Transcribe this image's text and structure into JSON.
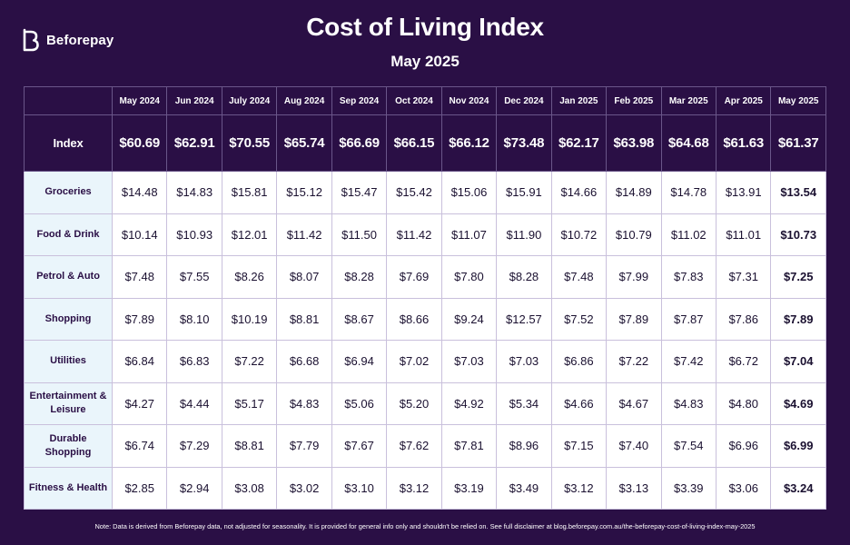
{
  "brand": {
    "name": "Beforepay",
    "icon": "beforepay-logo-icon"
  },
  "title": "Cost of Living Index",
  "subtitle": "May 2025",
  "index_label": "Index",
  "note": "Note: Data is derived from Beforepay data, not adjusted for seasonality. It is provided for general info only and shouldn't be relied on. See full disclaimer at blog.beforepay.com.au/the-beforepay-cost-of-living-index-may-2025",
  "colors": {
    "background": "#2a0f45",
    "label_cell": "#eaf5fb",
    "grid_border": "#c9c0dc",
    "text": "#1a1030"
  },
  "chart_data": {
    "type": "table",
    "title": "Cost of Living Index",
    "subtitle": "May 2025",
    "columns": [
      "May 2024",
      "Jun 2024",
      "July 2024",
      "Aug 2024",
      "Sep 2024",
      "Oct 2024",
      "Nov 2024",
      "Dec 2024",
      "Jan 2025",
      "Feb 2025",
      "Mar 2025",
      "Apr 2025",
      "May 2025"
    ],
    "index": [
      "$60.69",
      "$62.91",
      "$70.55",
      "$65.74",
      "$66.69",
      "$66.15",
      "$66.12",
      "$73.48",
      "$62.17",
      "$63.98",
      "$64.68",
      "$61.63",
      "$61.37"
    ],
    "rows": [
      {
        "label": "Groceries",
        "values": [
          "$14.48",
          "$14.83",
          "$15.81",
          "$15.12",
          "$15.47",
          "$15.42",
          "$15.06",
          "$15.91",
          "$14.66",
          "$14.89",
          "$14.78",
          "$13.91",
          "$13.54"
        ]
      },
      {
        "label": "Food & Drink",
        "values": [
          "$10.14",
          "$10.93",
          "$12.01",
          "$11.42",
          "$11.50",
          "$11.42",
          "$11.07",
          "$11.90",
          "$10.72",
          "$10.79",
          "$11.02",
          "$11.01",
          "$10.73"
        ]
      },
      {
        "label": "Petrol & Auto",
        "values": [
          "$7.48",
          "$7.55",
          "$8.26",
          "$8.07",
          "$8.28",
          "$7.69",
          "$7.80",
          "$8.28",
          "$7.48",
          "$7.99",
          "$7.83",
          "$7.31",
          "$7.25"
        ]
      },
      {
        "label": "Shopping",
        "values": [
          "$7.89",
          "$8.10",
          "$10.19",
          "$8.81",
          "$8.67",
          "$8.66",
          "$9.24",
          "$12.57",
          "$7.52",
          "$7.89",
          "$7.87",
          "$7.86",
          "$7.89"
        ]
      },
      {
        "label": "Utilities",
        "values": [
          "$6.84",
          "$6.83",
          "$7.22",
          "$6.68",
          "$6.94",
          "$7.02",
          "$7.03",
          "$7.03",
          "$6.86",
          "$7.22",
          "$7.42",
          "$6.72",
          "$7.04"
        ]
      },
      {
        "label": "Entertainment & Leisure",
        "values": [
          "$4.27",
          "$4.44",
          "$5.17",
          "$4.83",
          "$5.06",
          "$5.20",
          "$4.92",
          "$5.34",
          "$4.66",
          "$4.67",
          "$4.83",
          "$4.80",
          "$4.69"
        ]
      },
      {
        "label": "Durable Shopping",
        "values": [
          "$6.74",
          "$7.29",
          "$8.81",
          "$7.79",
          "$7.67",
          "$7.62",
          "$7.81",
          "$8.96",
          "$7.15",
          "$7.40",
          "$7.54",
          "$6.96",
          "$6.99"
        ]
      },
      {
        "label": "Fitness & Health",
        "values": [
          "$2.85",
          "$2.94",
          "$3.08",
          "$3.02",
          "$3.10",
          "$3.12",
          "$3.19",
          "$3.49",
          "$3.12",
          "$3.13",
          "$3.39",
          "$3.06",
          "$3.24"
        ]
      }
    ]
  }
}
